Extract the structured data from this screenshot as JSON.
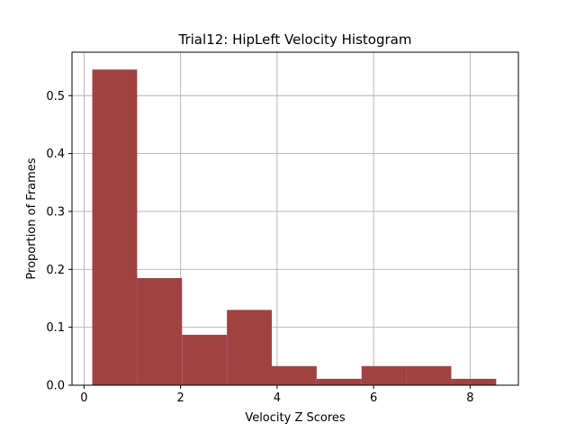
{
  "chart_data": {
    "type": "bar",
    "title": "Trial12: HipLeft Velocity Histogram",
    "xlabel": "Velocity Z Scores",
    "ylabel": "Proportion of Frames",
    "xlim": [
      -0.25,
      9.0
    ],
    "ylim": [
      0.0,
      0.575
    ],
    "x_ticks": [
      0,
      2,
      4,
      6,
      8
    ],
    "x_tick_labels": [
      "0",
      "2",
      "4",
      "6",
      "8"
    ],
    "y_ticks": [
      0.0,
      0.1,
      0.2,
      0.3,
      0.4,
      0.5
    ],
    "y_tick_labels": [
      "0.0",
      "0.1",
      "0.2",
      "0.3",
      "0.4",
      "0.5"
    ],
    "grid": true,
    "bar_color": "#a14242",
    "bins": [
      {
        "x0": 0.17,
        "x1": 1.1,
        "value": 0.545
      },
      {
        "x0": 1.1,
        "x1": 2.03,
        "value": 0.185
      },
      {
        "x0": 2.03,
        "x1": 2.96,
        "value": 0.087
      },
      {
        "x0": 2.96,
        "x1": 3.89,
        "value": 0.13
      },
      {
        "x0": 3.89,
        "x1": 4.82,
        "value": 0.033
      },
      {
        "x0": 4.82,
        "x1": 5.75,
        "value": 0.011
      },
      {
        "x0": 5.75,
        "x1": 6.68,
        "value": 0.033
      },
      {
        "x0": 6.68,
        "x1": 7.61,
        "value": 0.033
      },
      {
        "x0": 7.61,
        "x1": 8.54,
        "value": 0.011
      }
    ]
  }
}
